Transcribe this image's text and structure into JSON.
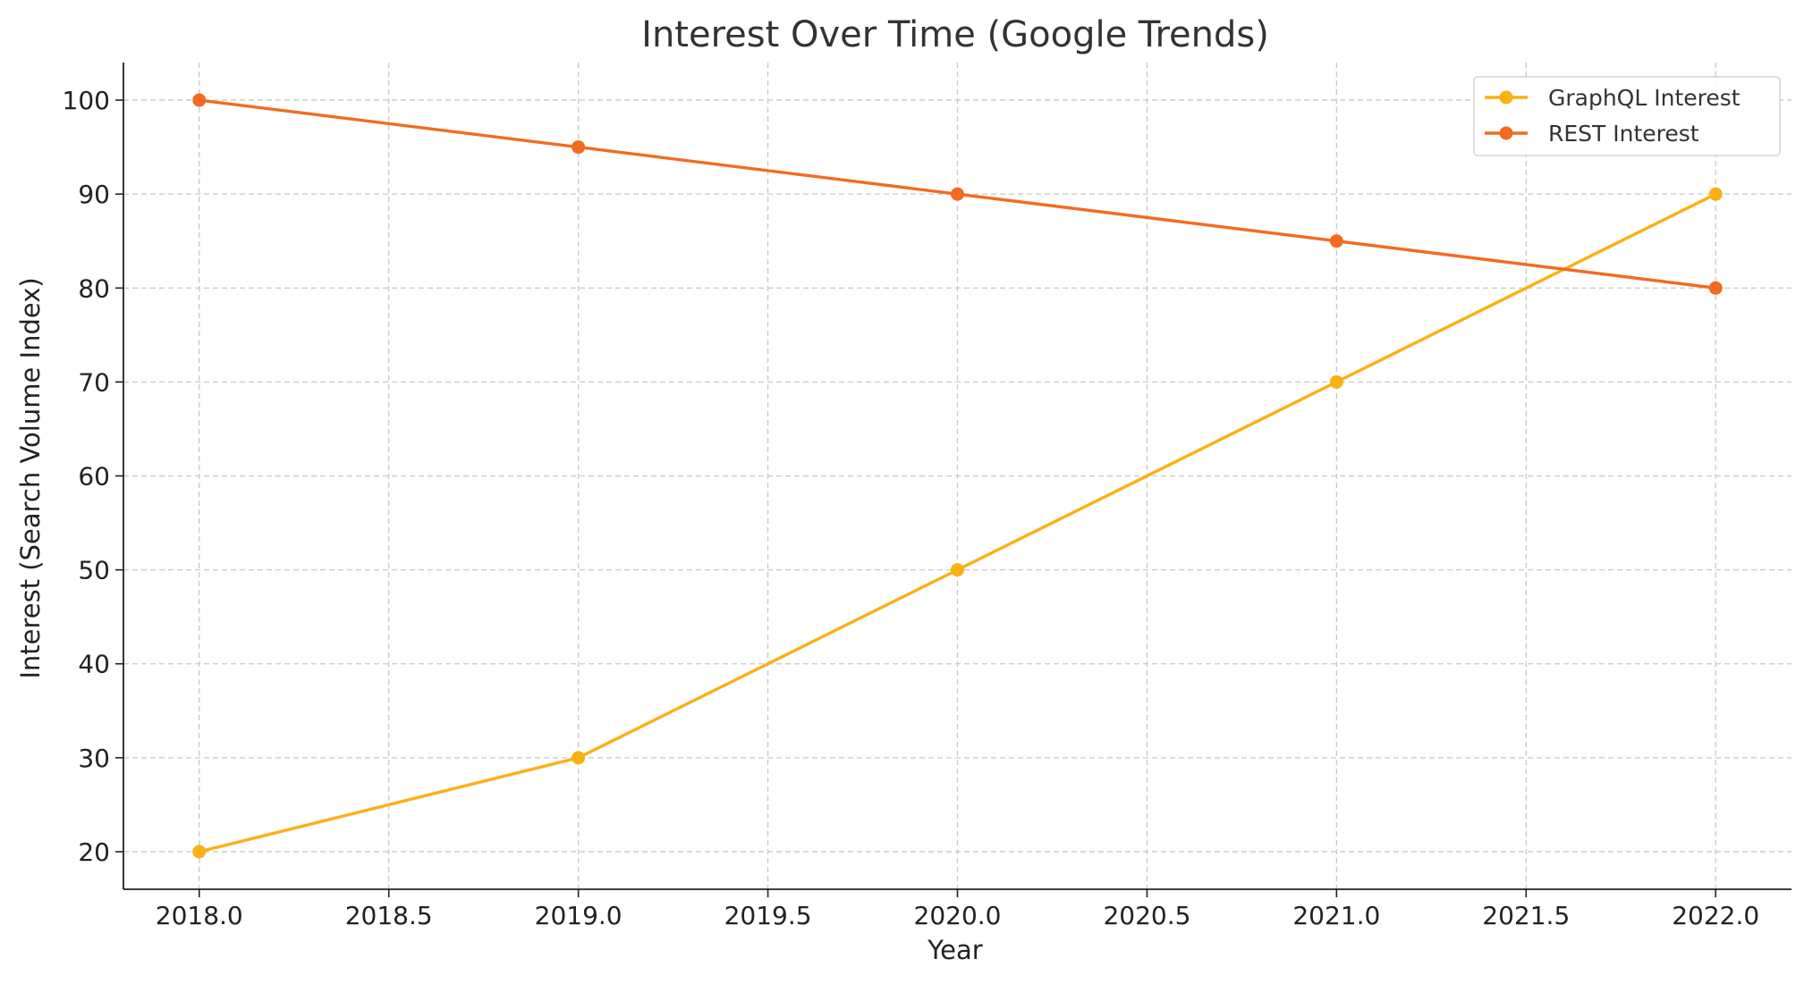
{
  "chart_data": {
    "type": "line",
    "title": "Interest Over Time (Google Trends)",
    "xlabel": "Year",
    "ylabel": "Interest (Search Volume Index)",
    "x": [
      2018,
      2019,
      2020,
      2021,
      2022
    ],
    "series": [
      {
        "name": "GraphQL Interest",
        "values": [
          20,
          30,
          50,
          70,
          90
        ],
        "color": "#FBB013"
      },
      {
        "name": "REST Interest",
        "values": [
          100,
          95,
          90,
          85,
          80
        ],
        "color": "#F36B21"
      }
    ],
    "xlim": [
      2017.8,
      2022.2
    ],
    "ylim": [
      16,
      104
    ],
    "x_ticks": [
      "2018.0",
      "2018.5",
      "2019.0",
      "2019.5",
      "2020.0",
      "2020.5",
      "2021.0",
      "2021.5",
      "2022.0"
    ],
    "y_ticks": [
      "20",
      "30",
      "40",
      "50",
      "60",
      "70",
      "80",
      "90",
      "100"
    ],
    "grid": true,
    "legend_position": "top-right"
  }
}
